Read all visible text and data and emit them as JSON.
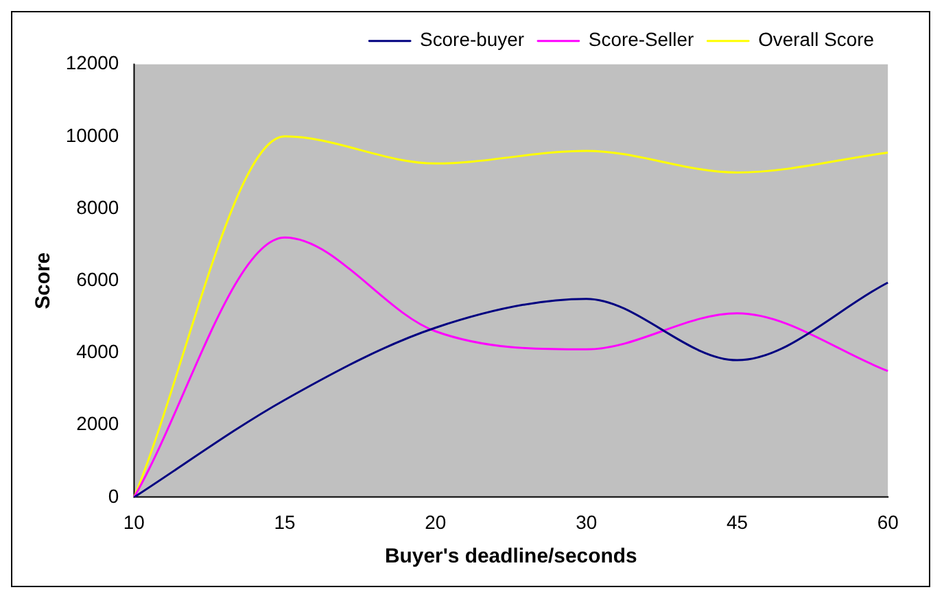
{
  "chart_data": {
    "type": "line",
    "xlabel": "Buyer's deadline/seconds",
    "ylabel": "Score",
    "categories": [
      "10",
      "15",
      "20",
      "30",
      "45",
      "60"
    ],
    "series": [
      {
        "name": "Score-buyer",
        "color": "#000080",
        "values": [
          0,
          2700,
          4700,
          5500,
          3800,
          5950
        ]
      },
      {
        "name": "Score-Seller",
        "color": "#ff00ff",
        "values": [
          0,
          7200,
          4600,
          4100,
          5100,
          3500
        ]
      },
      {
        "name": "Overall Score",
        "color": "#ffff00",
        "values": [
          0,
          10000,
          9250,
          9600,
          9000,
          9550
        ]
      }
    ],
    "ylim": [
      0,
      12000
    ],
    "yticks": [
      0,
      2000,
      4000,
      6000,
      8000,
      10000,
      12000
    ],
    "grid": false,
    "legend": "top right",
    "marker": "none",
    "line_style": "solid"
  }
}
